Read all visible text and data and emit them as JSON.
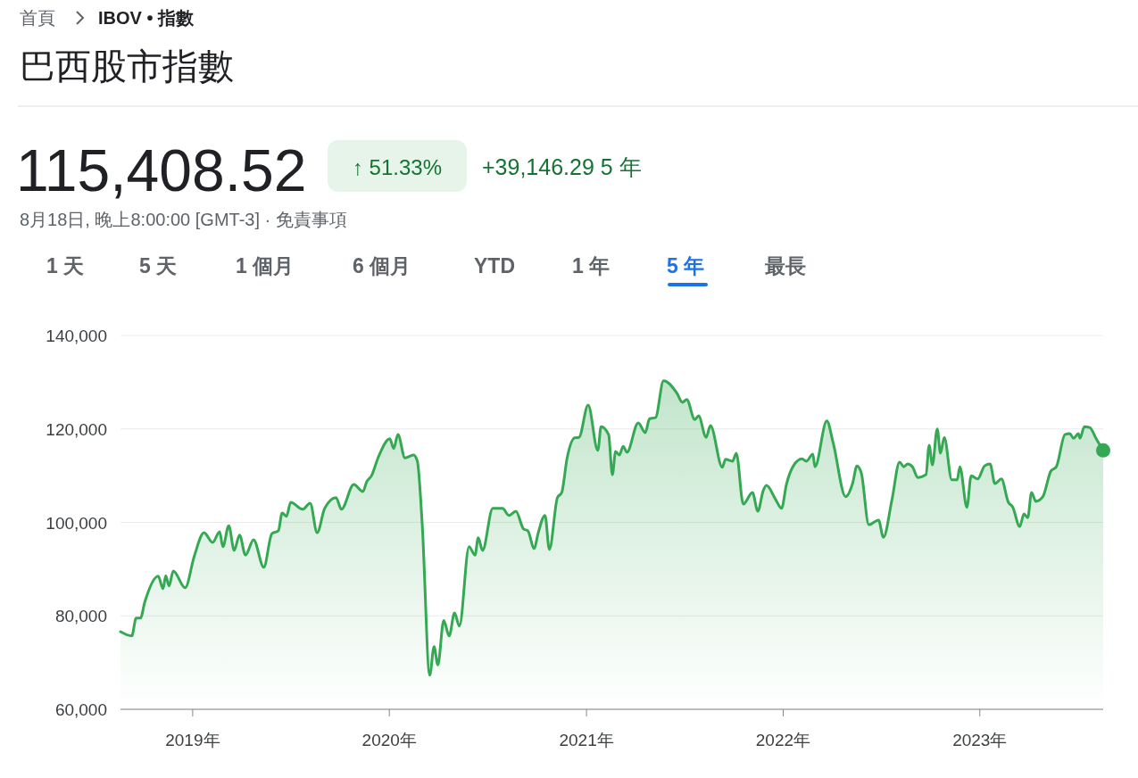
{
  "chart_data": {
    "type": "area",
    "title": "巴西股市指數",
    "subtitle": "115,408.52",
    "annotations": [
      "首頁",
      "IBOV • 指數",
      "↑ 51.33%",
      "+39,146.29 5 年",
      "8月18日, 晚上8:00:00 [GMT-3] · 免責事項",
      "1 天",
      "5 天",
      "1 個月",
      "6 個月",
      "YTD",
      "1 年",
      "5 年",
      "最長"
    ],
    "x": [
      "2018-08-20",
      "2018-09-10",
      "2018-09-18",
      "2018-09-26",
      "2018-10-04",
      "2018-10-29",
      "2018-11-07",
      "2018-11-12",
      "2018-11-18",
      "2018-11-26",
      "2018-12-18",
      "2019-01-04",
      "2019-01-22",
      "2019-02-07",
      "2019-02-20",
      "2019-02-26",
      "2019-03-09",
      "2019-03-19",
      "2019-03-29",
      "2019-04-09",
      "2019-04-24",
      "2019-05-13",
      "2019-05-28",
      "2019-06-09",
      "2019-06-16",
      "2019-06-24",
      "2019-07-02",
      "2019-07-24",
      "2019-08-07",
      "2019-08-20",
      "2019-09-03",
      "2019-09-24",
      "2019-10-04",
      "2019-10-27",
      "2019-11-13",
      "2019-11-20",
      "2019-11-29",
      "2019-12-11",
      "2020-01-02",
      "2020-01-09",
      "2020-01-17",
      "2020-01-30",
      "2020-02-15",
      "2020-02-22",
      "2020-03-02",
      "2020-03-16",
      "2020-03-24",
      "2020-03-31",
      "2020-04-11",
      "2020-04-21",
      "2020-05-01",
      "2020-05-10",
      "2020-05-28",
      "2020-06-08",
      "2020-06-14",
      "2020-06-22",
      "2020-07-11",
      "2020-07-29",
      "2020-08-10",
      "2020-08-23",
      "2020-09-06",
      "2020-09-14",
      "2020-09-26",
      "2020-10-03",
      "2020-10-16",
      "2020-10-24",
      "2020-11-08",
      "2020-11-16",
      "2020-11-26",
      "2020-12-10",
      "2020-12-18",
      "2021-01-04",
      "2021-01-22",
      "2021-01-28",
      "2021-02-11",
      "2021-02-18",
      "2021-02-24",
      "2021-03-03",
      "2021-03-10",
      "2021-03-17",
      "2021-04-07",
      "2021-04-20",
      "2021-04-28",
      "2021-05-09",
      "2021-05-24",
      "2021-06-18",
      "2021-06-28",
      "2021-07-06",
      "2021-07-21",
      "2021-07-28",
      "2021-08-11",
      "2021-08-19",
      "2021-09-10",
      "2021-09-16",
      "2021-09-29",
      "2021-10-06",
      "2021-10-19",
      "2021-11-05",
      "2021-11-15",
      "2021-11-25",
      "2021-12-01",
      "2021-12-18",
      "2021-12-29",
      "2022-01-07",
      "2022-01-20",
      "2022-02-05",
      "2022-02-13",
      "2022-02-25",
      "2022-03-01",
      "2022-03-23",
      "2022-04-04",
      "2022-04-27",
      "2022-05-10",
      "2022-05-18",
      "2022-05-26",
      "2022-06-09",
      "2022-06-27",
      "2022-07-06",
      "2022-07-22",
      "2022-08-05",
      "2022-08-13",
      "2022-08-20",
      "2022-08-29",
      "2022-09-08",
      "2022-09-23",
      "2022-09-29",
      "2022-10-05",
      "2022-10-14",
      "2022-10-20",
      "2022-10-27",
      "2022-11-10",
      "2022-11-20",
      "2022-11-25",
      "2022-12-08",
      "2022-12-16",
      "2022-12-28",
      "2023-01-10",
      "2023-01-20",
      "2023-01-29",
      "2023-02-10",
      "2023-02-23",
      "2023-03-03",
      "2023-03-16",
      "2023-03-24",
      "2023-03-31",
      "2023-04-07",
      "2023-04-15",
      "2023-04-28",
      "2023-05-13",
      "2023-05-23",
      "2023-06-08",
      "2023-06-17",
      "2023-06-24",
      "2023-07-03",
      "2023-07-06",
      "2023-07-14",
      "2023-07-24",
      "2023-08-05",
      "2023-08-18"
    ],
    "series": [
      {
        "color": "#34a853",
        "values": [
          76600,
          75700,
          79500,
          79500,
          82900,
          88500,
          85800,
          88600,
          86400,
          89600,
          86000,
          92800,
          97800,
          95700,
          98000,
          94800,
          99300,
          94000,
          97300,
          93000,
          96300,
          90400,
          97600,
          98200,
          102000,
          101300,
          104300,
          102800,
          104100,
          97800,
          103000,
          105300,
          102800,
          108100,
          106600,
          108700,
          110000,
          113800,
          117900,
          115800,
          118800,
          113800,
          114400,
          113100,
          99700,
          67300,
          73400,
          69500,
          79000,
          75700,
          80600,
          77800,
          94800,
          93000,
          96700,
          94000,
          103000,
          103000,
          101500,
          102400,
          98600,
          98200,
          94400,
          97600,
          101500,
          94200,
          105300,
          106400,
          113800,
          118100,
          118200,
          125100,
          115400,
          120500,
          118800,
          110200,
          115200,
          114400,
          116300,
          115000,
          121300,
          119200,
          122200,
          122400,
          130300,
          127600,
          125700,
          126300,
          122000,
          122800,
          118200,
          120700,
          111800,
          113500,
          113100,
          114800,
          103900,
          106400,
          102400,
          106800,
          107900,
          104900,
          103000,
          108100,
          112100,
          113600,
          113100,
          114600,
          111900,
          121700,
          116900,
          105500,
          108400,
          112100,
          110600,
          99500,
          100500,
          96800,
          104900,
          112900,
          111900,
          112500,
          111900,
          109600,
          110200,
          116500,
          112300,
          120000,
          114800,
          118200,
          109100,
          109100,
          111900,
          103200,
          110000,
          109300,
          112100,
          112500,
          108300,
          109300,
          104300,
          103300,
          99100,
          101800,
          101000,
          106400,
          104500,
          105500,
          111000,
          111900,
          118800,
          119000,
          118000,
          119000,
          118000,
          120500,
          120300,
          117900,
          115400
        ]
      }
    ],
    "xlim": [
      "2018-08-20",
      "2023-08-18"
    ],
    "xticks": [
      {
        "value": "2019-01-01",
        "label": "2019年"
      },
      {
        "value": "2020-01-01",
        "label": "2020年"
      },
      {
        "value": "2021-01-01",
        "label": "2021年"
      },
      {
        "value": "2022-01-01",
        "label": "2022年"
      },
      {
        "value": "2023-01-01",
        "label": "2023年"
      }
    ],
    "ylim": [
      60000,
      140000
    ],
    "yticks": [
      {
        "value": 60000,
        "label": "60,000"
      },
      {
        "value": 80000,
        "label": "80,000"
      },
      {
        "value": 100000,
        "label": "100,000"
      },
      {
        "value": 120000,
        "label": "120,000"
      },
      {
        "value": 140000,
        "label": "140,000"
      }
    ],
    "grid": "y",
    "marker": "none",
    "line_style": "solid"
  }
}
